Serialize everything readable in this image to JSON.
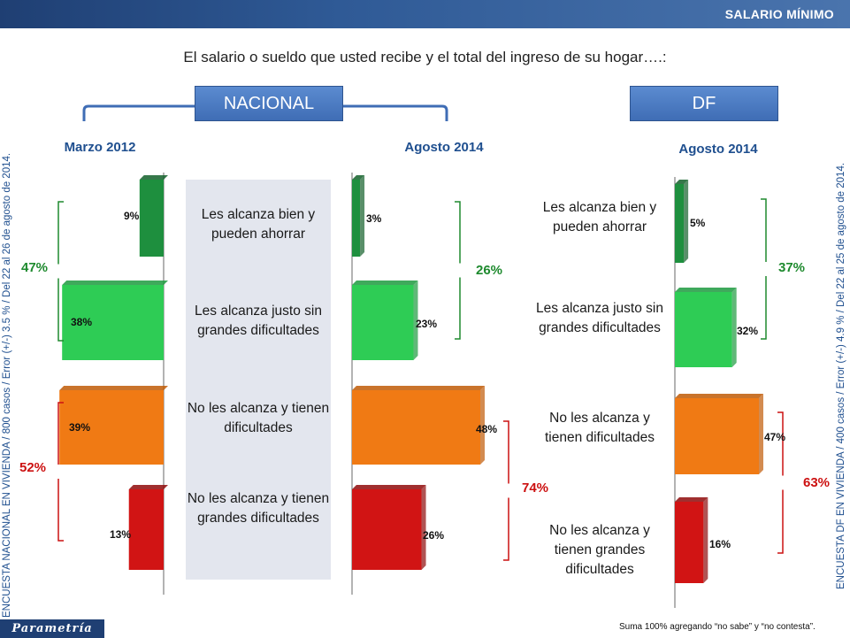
{
  "header": {
    "tab": "SALARIO MÍNIMO"
  },
  "question": "El salario o sueldo que usted recibe y el total del ingreso de su hogar….:",
  "groups": {
    "nacional": "NACIONAL",
    "df": "DF"
  },
  "dates": {
    "nac_2012": "Marzo 2012",
    "nac_2014": "Agosto 2014",
    "df_2014": "Agosto 2014"
  },
  "categories": [
    "Les alcanza bien y pueden ahorrar",
    "Les alcanza justo sin grandes dificultades",
    "No les alcanza y tienen dificultades",
    "No les alcanza y tienen grandes dificultades"
  ],
  "df_categories": [
    "Les alcanza bien y pueden ahorrar",
    "Les alcanza justo sin grandes dificultades",
    "No les alcanza y tienen dificultades",
    "No les alcanza y tienen grandes dificultades"
  ],
  "colors": {
    "bien": "#1e8f3e",
    "justo": "#2ecc55",
    "dificultades": "#f07a14",
    "grandes": "#d11414",
    "green_text": "#1e8a2e",
    "red_text": "#cc1111"
  },
  "chart_data": {
    "type": "bar",
    "categories": [
      "Les alcanza bien y pueden ahorrar",
      "Les alcanza justo sin grandes dificultades",
      "No les alcanza y tienen dificultades",
      "No les alcanza y tienen grandes dificultades"
    ],
    "series": [
      {
        "name": "Marzo 2012",
        "values": [
          9,
          38,
          39,
          13
        ],
        "labels": [
          "9%",
          "38%",
          "39%",
          "13%"
        ]
      },
      {
        "name": "Agosto 2014",
        "values": [
          3,
          23,
          48,
          26
        ],
        "labels": [
          "3%",
          "23%",
          "48%",
          "26%"
        ]
      },
      {
        "name": "Agosto 2014",
        "values": [
          5,
          32,
          47,
          16
        ],
        "labels": [
          "5%",
          "32%",
          "47%",
          "16%"
        ]
      }
    ],
    "sums": {
      "nac_2012_alcanza": "47%",
      "nac_2012_no": "52%",
      "nac_2014_alcanza": "26%",
      "nac_2014_no": "74%",
      "df_2014_alcanza": "37%",
      "df_2014_no": "63%"
    }
  },
  "side_notes": {
    "left": "ENCUESTA NACIONAL EN VIVIENDA / 800 casos / Error (+/-) 3.5 % / Del 22 al 26 de agosto de 2014.",
    "right": "ENCUESTA DF EN VIVIENDA / 400 casos / Error (+/-) 4.9 % / Del 22 al 25 de agosto de 2014."
  },
  "logo": "Parametría",
  "footnote": "Suma 100% agregando “no sabe” y “no contesta”."
}
